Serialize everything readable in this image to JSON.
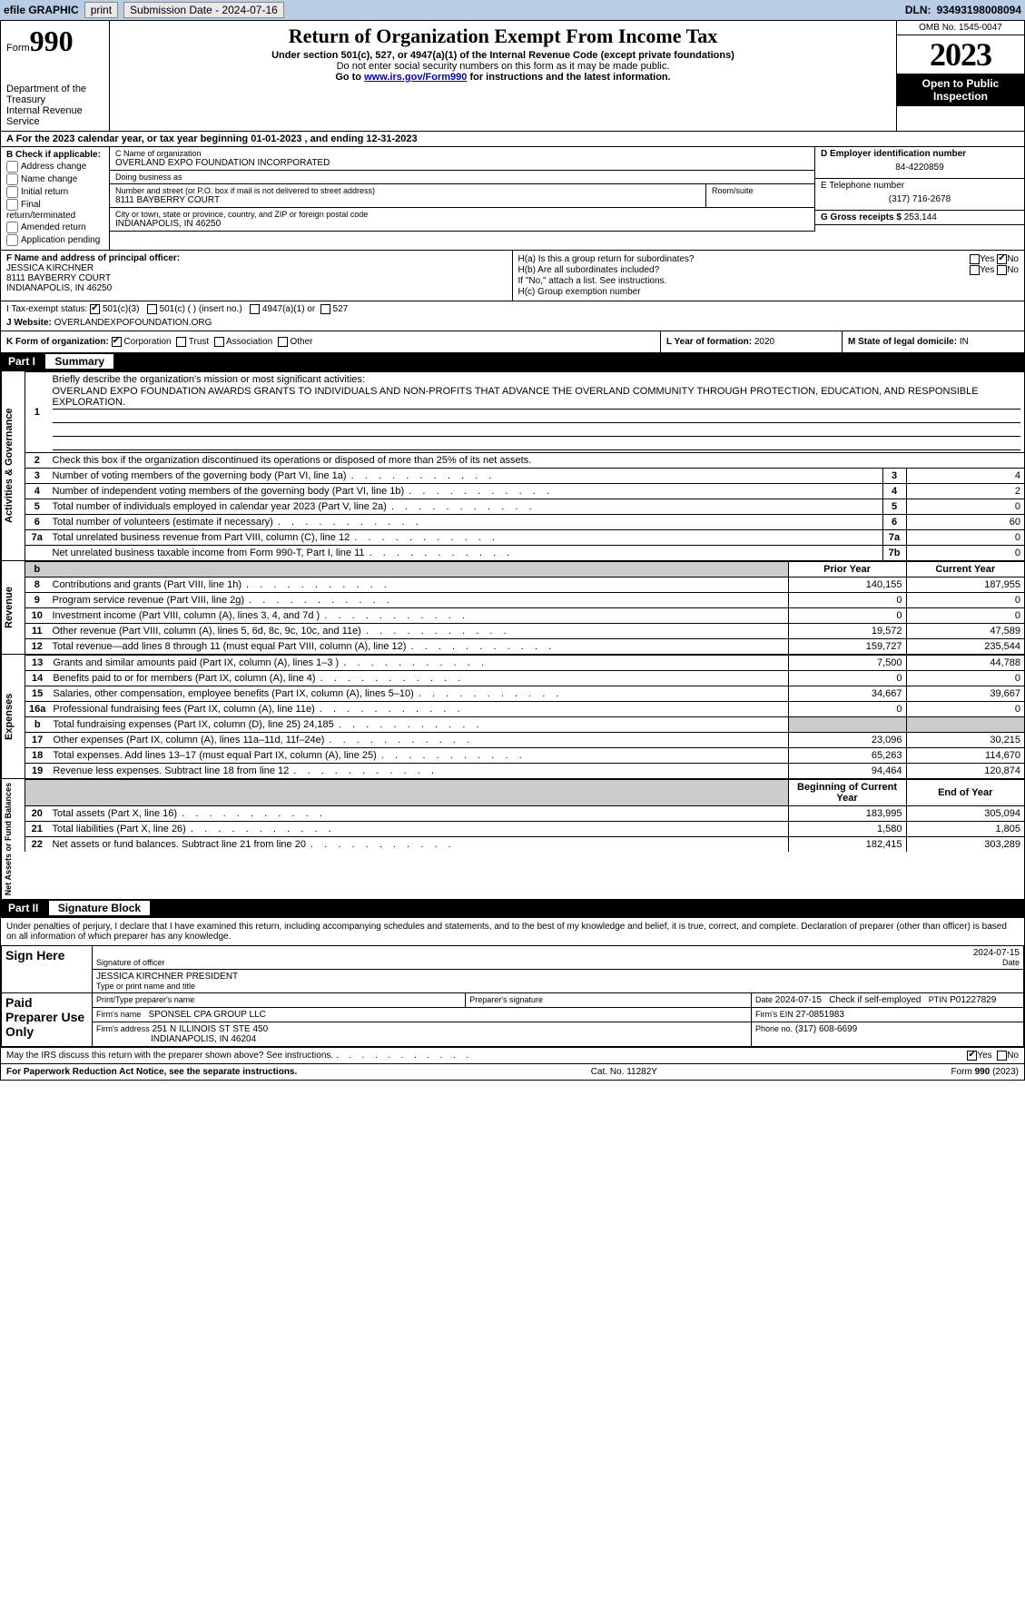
{
  "topbar": {
    "efile": "efile GRAPHIC",
    "print": "print",
    "subdate_lbl": "Submission Date -",
    "subdate": "2024-07-16",
    "dln_lbl": "DLN:",
    "dln": "93493198008094"
  },
  "header": {
    "form_word": "Form",
    "form_no": "990",
    "dept": "Department of the Treasury",
    "irs": "Internal Revenue Service",
    "title": "Return of Organization Exempt From Income Tax",
    "sub1": "Under section 501(c), 527, or 4947(a)(1) of the Internal Revenue Code (except private foundations)",
    "sub2": "Do not enter social security numbers on this form as it may be made public.",
    "sub3_pre": "Go to ",
    "sub3_link": "www.irs.gov/Form990",
    "sub3_post": " for instructions and the latest information.",
    "omb": "OMB No. 1545-0047",
    "year": "2023",
    "insp": "Open to Public Inspection"
  },
  "rowA": {
    "text_pre": "A For the 2023 calendar year, or tax year beginning ",
    "begin": "01-01-2023",
    "mid": " , and ending ",
    "end": "12-31-2023"
  },
  "secB": {
    "label": "B Check if applicable:",
    "items": [
      "Address change",
      "Name change",
      "Initial return",
      "Final return/terminated",
      "Amended return",
      "Application pending"
    ]
  },
  "secC": {
    "name_lbl": "C Name of organization",
    "name": "OVERLAND EXPO FOUNDATION INCORPORATED",
    "dba_lbl": "Doing business as",
    "dba": "",
    "street_lbl": "Number and street (or P.O. box if mail is not delivered to street address)",
    "street": "8111 BAYBERRY COURT",
    "room_lbl": "Room/suite",
    "room": "",
    "city_lbl": "City or town, state or province, country, and ZIP or foreign postal code",
    "city": "INDIANAPOLIS, IN  46250"
  },
  "secD": {
    "lbl": "D Employer identification number",
    "val": "84-4220859"
  },
  "secE": {
    "lbl": "E Telephone number",
    "val": "(317) 716-2678"
  },
  "secG": {
    "lbl": "G Gross receipts $",
    "val": "253,144"
  },
  "secF": {
    "lbl": "F Name and address of principal officer:",
    "name": "JESSICA KIRCHNER",
    "addr1": "8111 BAYBERRY COURT",
    "addr2": "INDIANAPOLIS, IN  46250"
  },
  "secH": {
    "a": "H(a)  Is this a group return for subordinates?",
    "b": "H(b)  Are all subordinates included?",
    "b_note": "If \"No,\" attach a list. See instructions.",
    "c": "H(c)  Group exemption number",
    "yes": "Yes",
    "no": "No"
  },
  "secI": {
    "lbl": "I   Tax-exempt status:",
    "opt1": "501(c)(3)",
    "opt2": "501(c) (  ) (insert no.)",
    "opt3": "4947(a)(1) or",
    "opt4": "527"
  },
  "secJ": {
    "lbl": "J   Website:",
    "val": "OVERLANDEXPOFOUNDATION.ORG"
  },
  "secK": {
    "lbl": "K Form of organization:",
    "opts": [
      "Corporation",
      "Trust",
      "Association",
      "Other"
    ]
  },
  "secL": {
    "lbl": "L Year of formation:",
    "val": "2020"
  },
  "secM": {
    "lbl": "M State of legal domicile:",
    "val": "IN"
  },
  "part1": {
    "no": "Part I",
    "title": "Summary"
  },
  "part2": {
    "no": "Part II",
    "title": "Signature Block"
  },
  "summary": {
    "q1_lbl": "Briefly describe the organization's mission or most significant activities:",
    "q1_text": "OVERLAND EXPO FOUNDATION AWARDS GRANTS TO INDIVIDUALS AND NON-PROFITS THAT ADVANCE THE OVERLAND COMMUNITY THROUGH PROTECTION, EDUCATION, AND RESPONSIBLE EXPLORATION.",
    "q2": "Check this box      if the organization discontinued its operations or disposed of more than 25% of its net assets.",
    "gov_label": "Activities & Governance",
    "rev_label": "Revenue",
    "exp_label": "Expenses",
    "net_label": "Net Assets or Fund Balances",
    "rows_top": [
      {
        "n": "3",
        "t": "Number of voting members of the governing body (Part VI, line 1a)",
        "l": "3",
        "v": "4"
      },
      {
        "n": "4",
        "t": "Number of independent voting members of the governing body (Part VI, line 1b)",
        "l": "4",
        "v": "2"
      },
      {
        "n": "5",
        "t": "Total number of individuals employed in calendar year 2023 (Part V, line 2a)",
        "l": "5",
        "v": "0"
      },
      {
        "n": "6",
        "t": "Total number of volunteers (estimate if necessary)",
        "l": "6",
        "v": "60"
      },
      {
        "n": "7a",
        "t": "Total unrelated business revenue from Part VIII, column (C), line 12",
        "l": "7a",
        "v": "0"
      },
      {
        "n": "",
        "t": "Net unrelated business taxable income from Form 990-T, Part I, line 11",
        "l": "7b",
        "v": "0"
      }
    ],
    "yr_prior": "Prior Year",
    "yr_curr": "Current Year",
    "rows_rev": [
      {
        "n": "8",
        "t": "Contributions and grants (Part VIII, line 1h)",
        "p": "140,155",
        "c": "187,955"
      },
      {
        "n": "9",
        "t": "Program service revenue (Part VIII, line 2g)",
        "p": "0",
        "c": "0"
      },
      {
        "n": "10",
        "t": "Investment income (Part VIII, column (A), lines 3, 4, and 7d )",
        "p": "0",
        "c": "0"
      },
      {
        "n": "11",
        "t": "Other revenue (Part VIII, column (A), lines 5, 6d, 8c, 9c, 10c, and 11e)",
        "p": "19,572",
        "c": "47,589"
      },
      {
        "n": "12",
        "t": "Total revenue—add lines 8 through 11 (must equal Part VIII, column (A), line 12)",
        "p": "159,727",
        "c": "235,544"
      }
    ],
    "rows_exp": [
      {
        "n": "13",
        "t": "Grants and similar amounts paid (Part IX, column (A), lines 1–3 )",
        "p": "7,500",
        "c": "44,788"
      },
      {
        "n": "14",
        "t": "Benefits paid to or for members (Part IX, column (A), line 4)",
        "p": "0",
        "c": "0"
      },
      {
        "n": "15",
        "t": "Salaries, other compensation, employee benefits (Part IX, column (A), lines 5–10)",
        "p": "34,667",
        "c": "39,667"
      },
      {
        "n": "16a",
        "t": "Professional fundraising fees (Part IX, column (A), line 11e)",
        "p": "0",
        "c": "0"
      },
      {
        "n": "b",
        "t": "Total fundraising expenses (Part IX, column (D), line 25) 24,185",
        "p": "",
        "c": "",
        "gray": true
      },
      {
        "n": "17",
        "t": "Other expenses (Part IX, column (A), lines 11a–11d, 11f–24e)",
        "p": "23,096",
        "c": "30,215"
      },
      {
        "n": "18",
        "t": "Total expenses. Add lines 13–17 (must equal Part IX, column (A), line 25)",
        "p": "65,263",
        "c": "114,670"
      },
      {
        "n": "19",
        "t": "Revenue less expenses. Subtract line 18 from line 12",
        "p": "94,464",
        "c": "120,874"
      }
    ],
    "yr_beg": "Beginning of Current Year",
    "yr_end": "End of Year",
    "rows_net": [
      {
        "n": "20",
        "t": "Total assets (Part X, line 16)",
        "p": "183,995",
        "c": "305,094"
      },
      {
        "n": "21",
        "t": "Total liabilities (Part X, line 26)",
        "p": "1,580",
        "c": "1,805"
      },
      {
        "n": "22",
        "t": "Net assets or fund balances. Subtract line 21 from line 20",
        "p": "182,415",
        "c": "303,289"
      }
    ]
  },
  "sig": {
    "penalty": "Under penalties of perjury, I declare that I have examined this return, including accompanying schedules and statements, and to the best of my knowledge and belief, it is true, correct, and complete. Declaration of preparer (other than officer) is based on all information of which preparer has any knowledge.",
    "sign_here": "Sign Here",
    "sig_date": "2024-07-15",
    "sig_lbl": "Signature of officer",
    "date_lbl": "Date",
    "officer": "JESSICA KIRCHNER  PRESIDENT",
    "type_lbl": "Type or print name and title",
    "paid": "Paid Preparer Use Only",
    "prep_name_lbl": "Print/Type preparer's name",
    "prep_sig_lbl": "Preparer's signature",
    "prep_date": "2024-07-15",
    "check_lbl": "Check        if self-employed",
    "ptin_lbl": "PTIN",
    "ptin": "P01227829",
    "firm_name_lbl": "Firm's name",
    "firm_name": "SPONSEL CPA GROUP LLC",
    "firm_ein_lbl": "Firm's EIN",
    "firm_ein": "27-0851983",
    "firm_addr_lbl": "Firm's address",
    "firm_addr1": "251 N ILLINOIS ST STE 450",
    "firm_addr2": "INDIANAPOLIS, IN  46204",
    "phone_lbl": "Phone no.",
    "phone": "(317) 608-6699",
    "discuss": "May the IRS discuss this return with the preparer shown above? See instructions.",
    "yes": "Yes",
    "no": "No"
  },
  "footer": {
    "l": "For Paperwork Reduction Act Notice, see the separate instructions.",
    "m": "Cat. No. 11282Y",
    "r": "Form 990 (2023)"
  }
}
